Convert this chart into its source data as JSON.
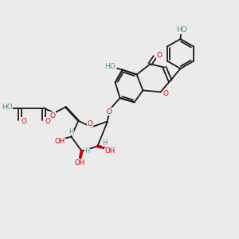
{
  "background_color": "#ebebeb",
  "bond_color": "#1a1a1a",
  "oxygen_color": "#cc0000",
  "atom_color": "#4a9090",
  "figsize": [
    3.0,
    3.0
  ],
  "dpi": 100,
  "xlim": [
    0,
    10
  ],
  "ylim": [
    0,
    10
  ]
}
